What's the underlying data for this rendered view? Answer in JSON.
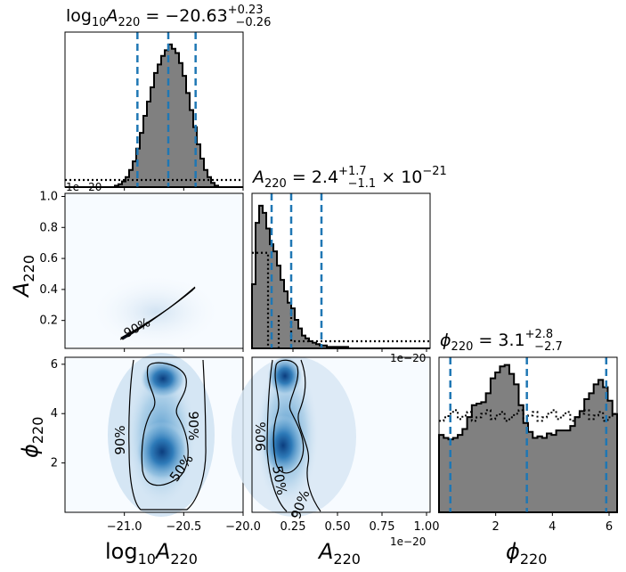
{
  "chart_data": {
    "type": "corner",
    "parameters": [
      "log10_A220",
      "A220",
      "phi220"
    ],
    "titles": {
      "log10_A220": {
        "prefix": "log",
        "sub": "10",
        "var": "A",
        "varsub": "220",
        "median": "−20.63",
        "plus": "+0.23",
        "minus": "−0.26"
      },
      "A220": {
        "var": "A",
        "varsub": "220",
        "median": "2.4",
        "plus": "+1.7",
        "minus": "−1.1",
        "exp": "−21"
      },
      "phi220": {
        "var": "ϕ",
        "varsub": "220",
        "median": "3.1",
        "plus": "+2.8",
        "minus": "−2.7"
      }
    },
    "axis_labels": {
      "x_log": {
        "main": "log",
        "sub1": "10",
        "var": "A",
        "sub2": "220"
      },
      "x_A": {
        "var": "A",
        "sub": "220"
      },
      "x_phi": {
        "var": "ϕ",
        "sub": "220"
      },
      "y_A": {
        "var": "A",
        "sub": "220"
      },
      "y_phi": {
        "var": "ϕ",
        "sub": "220"
      }
    },
    "offset_text": "1e−20",
    "ticks": {
      "log_x": [
        "−21.0",
        "−20.5",
        "−20.0"
      ],
      "log_x_vals": [
        -21.0,
        -20.5,
        -20.0
      ],
      "A_x": [
        "0.25",
        "0.50",
        "0.75",
        "1.00"
      ],
      "A_x_vals": [
        0.25,
        0.5,
        0.75,
        1.0
      ],
      "phi_x": [
        "2",
        "4",
        "6"
      ],
      "phi_x_vals": [
        2,
        4,
        6
      ],
      "A_y": [
        "0.2",
        "0.4",
        "0.6",
        "0.8",
        "1.0"
      ],
      "A_y_vals": [
        0.2,
        0.4,
        0.6,
        0.8,
        1.0
      ],
      "phi_y": [
        "2",
        "4",
        "6"
      ],
      "phi_y_vals": [
        2,
        4,
        6
      ]
    },
    "ranges": {
      "log10_A220": [
        -21.5,
        -20.0
      ],
      "A220": [
        0.02,
        1.02
      ],
      "phi220": [
        0.0,
        6.283
      ]
    },
    "quantiles": {
      "log10_A220": [
        -20.89,
        -20.63,
        -20.4
      ],
      "A220": [
        0.13,
        0.24,
        0.41
      ],
      "phi220": [
        0.4,
        3.1,
        5.9
      ]
    },
    "hist_log10_A220": [
      0,
      0,
      0,
      0,
      0,
      0,
      0,
      0,
      0,
      0,
      0,
      0,
      0,
      0,
      0.01,
      0.02,
      0.04,
      0.07,
      0.12,
      0.18,
      0.27,
      0.38,
      0.5,
      0.6,
      0.7,
      0.8,
      0.86,
      0.92,
      0.96,
      1.0,
      0.97,
      0.94,
      0.87,
      0.78,
      0.66,
      0.54,
      0.42,
      0.3,
      0.2,
      0.12,
      0.07,
      0.03,
      0.01,
      0,
      0,
      0,
      0,
      0,
      0,
      0
    ],
    "hist_A220": [
      0.45,
      0.88,
      1.0,
      0.95,
      0.84,
      0.73,
      0.68,
      0.58,
      0.48,
      0.4,
      0.32,
      0.28,
      0.2,
      0.14,
      0.09,
      0.07,
      0.05,
      0.04,
      0.03,
      0.02,
      0.02,
      0.01,
      0.01,
      0.01,
      0.01,
      0.01,
      0.01,
      0,
      0,
      0,
      0,
      0,
      0,
      0,
      0,
      0,
      0,
      0,
      0,
      0,
      0,
      0,
      0,
      0,
      0,
      0,
      0,
      0,
      0,
      0
    ],
    "hist_phi220": [
      0.52,
      0.5,
      0.49,
      0.5,
      0.52,
      0.56,
      0.64,
      0.72,
      0.73,
      0.74,
      0.8,
      0.9,
      0.94,
      0.98,
      0.99,
      0.93,
      0.86,
      0.72,
      0.6,
      0.54,
      0.5,
      0.51,
      0.5,
      0.53,
      0.52,
      0.55,
      0.55,
      0.55,
      0.58,
      0.64,
      0.68,
      0.76,
      0.8,
      0.86,
      0.89,
      0.84,
      0.75,
      0.66
    ],
    "prior_log10_A220": 0.05,
    "prior_A220": 0.05,
    "prior_A220_initial": 0.67,
    "prior_phi220": 0.65,
    "contour_labels": {
      "c90": "90%",
      "c50": "50%"
    }
  }
}
